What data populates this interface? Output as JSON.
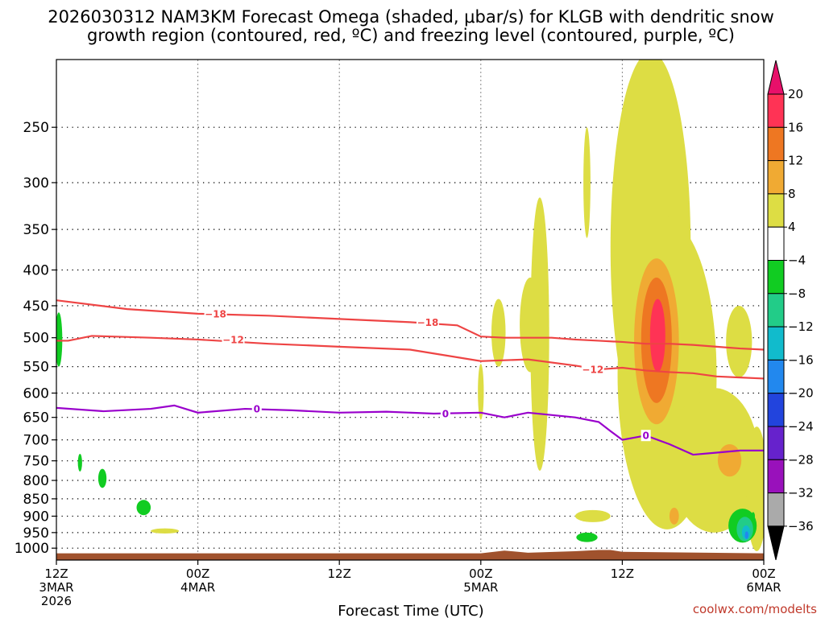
{
  "chart_data": {
    "type": "time-height cross section",
    "title_lines": [
      "2026030312 NAM3KM Forecast Omega (shaded, μbar/s) for KLGB with dendritic snow",
      "growth region (contoured, red, ºC) and freezing level (contoured, purple, ºC)"
    ],
    "xlabel": "Forecast Time (UTC)",
    "credit": "coolwx.com/modelts",
    "x_range_hours": [
      0,
      60
    ],
    "x_ticks": [
      {
        "hour": 0,
        "lines": [
          "12Z",
          "3MAR",
          "2026"
        ]
      },
      {
        "hour": 12,
        "lines": [
          "00Z",
          "4MAR"
        ]
      },
      {
        "hour": 24,
        "lines": [
          "12Z"
        ]
      },
      {
        "hour": 36,
        "lines": [
          "00Z",
          "5MAR"
        ]
      },
      {
        "hour": 48,
        "lines": [
          "12Z"
        ]
      },
      {
        "hour": 60,
        "lines": [
          "00Z",
          "6MAR"
        ]
      }
    ],
    "y_range_mb": [
      1040,
      200
    ],
    "y_ticks_mb": [
      250,
      300,
      350,
      400,
      450,
      500,
      550,
      600,
      650,
      700,
      750,
      800,
      850,
      900,
      950,
      1000
    ],
    "colorbar": {
      "labels": [
        "20",
        "16",
        "12",
        "8",
        "4",
        "−4",
        "−8",
        "−12",
        "−16",
        "−20",
        "−24",
        "−28",
        "−32",
        "−36"
      ],
      "colors": [
        "#ff3355",
        "#ee7722",
        "#f0aa33",
        "#dddd44",
        "#ffffff",
        "#11cc22",
        "#22cc88",
        "#11bbcc",
        "#2288ee",
        "#2244dd",
        "#6622cc",
        "#9911bb",
        "#aaaaaa"
      ],
      "top_color": "#e8106a",
      "bottom_color": "#000000"
    },
    "contours": [
      {
        "name": "minus18",
        "label": "−18",
        "color": "#ee4444",
        "x": [
          0,
          6,
          12,
          18,
          24,
          30,
          34,
          36,
          38,
          42,
          44,
          46,
          48,
          50,
          52,
          54,
          56,
          58,
          60
        ],
        "y": [
          442,
          455,
          462,
          465,
          470,
          475,
          480,
          498,
          500,
          500,
          503,
          505,
          507,
          510,
          510,
          512,
          515,
          518,
          520
        ],
        "label_positions": [
          {
            "x": 13.5,
            "y": 462
          },
          {
            "x": 31.5,
            "y": 475
          }
        ]
      },
      {
        "name": "minus12",
        "label": "−12",
        "color": "#ee4444",
        "x": [
          0,
          1,
          3,
          8,
          12,
          18,
          24,
          30,
          36,
          40,
          44,
          46,
          48,
          50,
          52,
          54,
          56,
          58,
          60
        ],
        "y": [
          505,
          505,
          497,
          500,
          503,
          510,
          515,
          520,
          540,
          537,
          548,
          555,
          552,
          557,
          560,
          562,
          568,
          570,
          572
        ],
        "label_positions": [
          {
            "x": 15,
            "y": 503
          },
          {
            "x": 45.5,
            "y": 555
          }
        ]
      },
      {
        "name": "zero",
        "label": "0",
        "color": "#9900cc",
        "x": [
          0,
          4,
          8,
          10,
          12,
          16,
          20,
          24,
          28,
          32,
          36,
          38,
          40,
          44,
          46,
          47,
          48,
          50,
          52,
          54,
          56,
          58,
          60
        ],
        "y": [
          630,
          637,
          632,
          625,
          640,
          632,
          635,
          640,
          638,
          642,
          640,
          650,
          640,
          650,
          660,
          680,
          700,
          690,
          710,
          735,
          730,
          725,
          725
        ],
        "label_positions": [
          {
            "x": 17,
            "y": 632
          },
          {
            "x": 33,
            "y": 642
          },
          {
            "x": 50,
            "y": 690
          }
        ]
      }
    ],
    "shaded_regions": [
      {
        "name": "omega-4-to-8",
        "level": "4",
        "color": "#dddd44",
        "blobs": [
          {
            "x": 48.2,
            "y": 560,
            "rx": 0.5,
            "ry": 160
          },
          {
            "x": 45,
            "y": 305,
            "rx": 0.3,
            "ry": 55
          },
          {
            "x": 50.4,
            "y": 450,
            "rx": 3.4,
            "ry": 255
          },
          {
            "x": 51.3,
            "y": 330,
            "rx": 0.6,
            "ry": 45
          },
          {
            "x": 51.8,
            "y": 640,
            "rx": 4.2,
            "ry": 300
          },
          {
            "x": 55.8,
            "y": 770,
            "rx": 3.8,
            "ry": 180
          },
          {
            "x": 59.4,
            "y": 840,
            "rx": 0.9,
            "ry": 170
          },
          {
            "x": 41,
            "y": 545,
            "rx": 0.8,
            "ry": 230
          },
          {
            "x": 40.2,
            "y": 485,
            "rx": 0.9,
            "ry": 75
          },
          {
            "x": 37.5,
            "y": 495,
            "rx": 0.6,
            "ry": 55
          },
          {
            "x": 57.9,
            "y": 510,
            "rx": 1.1,
            "ry": 60
          },
          {
            "x": 52.2,
            "y": 885,
            "rx": 1.0,
            "ry": 35
          },
          {
            "x": 45.5,
            "y": 900,
            "rx": 1.5,
            "ry": 18
          },
          {
            "x": 36.0,
            "y": 600,
            "rx": 0.25,
            "ry": 55
          },
          {
            "x": 9.2,
            "y": 945,
            "rx": 1.2,
            "ry": 8
          }
        ]
      },
      {
        "name": "omega-8-to-12",
        "level": "8",
        "color": "#f0aa33",
        "blobs": [
          {
            "x": 50.9,
            "y": 525,
            "rx": 1.9,
            "ry": 140
          },
          {
            "x": 52.4,
            "y": 900,
            "rx": 0.4,
            "ry": 25
          },
          {
            "x": 57.1,
            "y": 750,
            "rx": 1.0,
            "ry": 40
          }
        ]
      },
      {
        "name": "omega-12-to-16",
        "level": "12",
        "color": "#ee7722",
        "blobs": [
          {
            "x": 50.9,
            "y": 515,
            "rx": 1.3,
            "ry": 105
          }
        ]
      },
      {
        "name": "omega-16-to-20",
        "level": "16",
        "color": "#ff3355",
        "blobs": [
          {
            "x": 51.0,
            "y": 500,
            "rx": 0.65,
            "ry": 60
          }
        ]
      },
      {
        "name": "omega-neg4-to-neg8",
        "level": "-4",
        "color": "#11cc22",
        "blobs": [
          {
            "x": 0.2,
            "y": 505,
            "rx": 0.3,
            "ry": 45
          },
          {
            "x": 2.0,
            "y": 755,
            "rx": 0.18,
            "ry": 22
          },
          {
            "x": 3.9,
            "y": 795,
            "rx": 0.35,
            "ry": 25
          },
          {
            "x": 7.4,
            "y": 875,
            "rx": 0.6,
            "ry": 22
          },
          {
            "x": 45.0,
            "y": 965,
            "rx": 0.9,
            "ry": 15
          },
          {
            "x": 58.2,
            "y": 930,
            "rx": 1.2,
            "ry": 52
          },
          {
            "x": 59.1,
            "y": 900,
            "rx": 0.15,
            "ry": 12
          }
        ]
      },
      {
        "name": "omega-neg8-to-neg12",
        "level": "-8",
        "color": "#22cc88",
        "blobs": [
          {
            "x": 58.4,
            "y": 940,
            "rx": 0.7,
            "ry": 38
          }
        ]
      },
      {
        "name": "omega-neg12-to-neg16",
        "level": "-12",
        "color": "#11bbcc",
        "blobs": [
          {
            "x": 58.5,
            "y": 950,
            "rx": 0.35,
            "ry": 22
          }
        ]
      },
      {
        "name": "omega-neg16-to-neg20",
        "level": "-16",
        "color": "#2288ee",
        "blobs": [
          {
            "x": 58.55,
            "y": 958,
            "rx": 0.15,
            "ry": 12
          }
        ]
      }
    ],
    "terrain": {
      "color": "#a0522d",
      "x": [
        0,
        36,
        38,
        40,
        44,
        46,
        47,
        48,
        60
      ],
      "y": [
        1017,
        1017,
        1008,
        1015,
        1010,
        1006,
        1006,
        1012,
        1017
      ]
    }
  }
}
